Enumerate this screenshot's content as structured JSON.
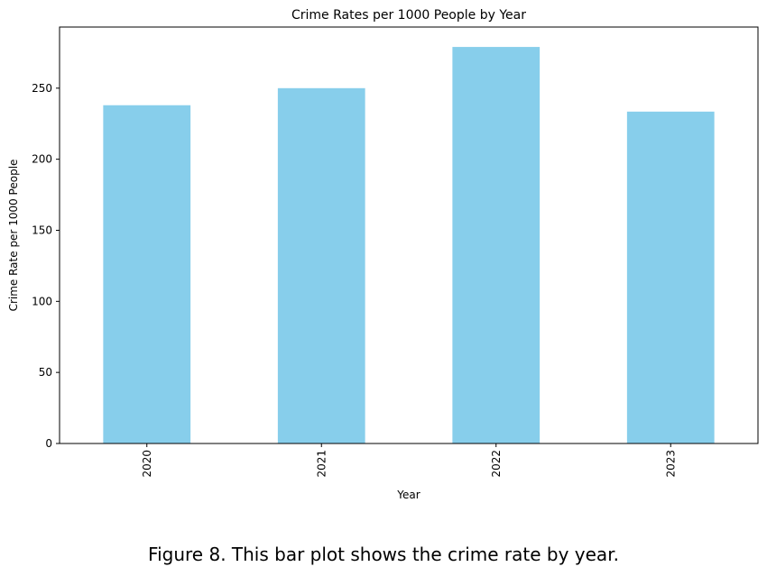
{
  "chart_data": {
    "type": "bar",
    "title": "Crime Rates per 1000 People by Year",
    "xlabel": "Year",
    "ylabel": "Crime Rate per 1000 People",
    "categories": [
      "2020",
      "2021",
      "2022",
      "2023"
    ],
    "values": [
      238,
      250,
      279,
      233.5
    ],
    "ylim": [
      0,
      293
    ],
    "yticks": [
      0,
      50,
      100,
      150,
      200,
      250
    ],
    "bar_color": "#87ceeb",
    "grid": false,
    "legend": "none"
  },
  "caption": "Figure 8. This bar plot shows the crime rate by year."
}
